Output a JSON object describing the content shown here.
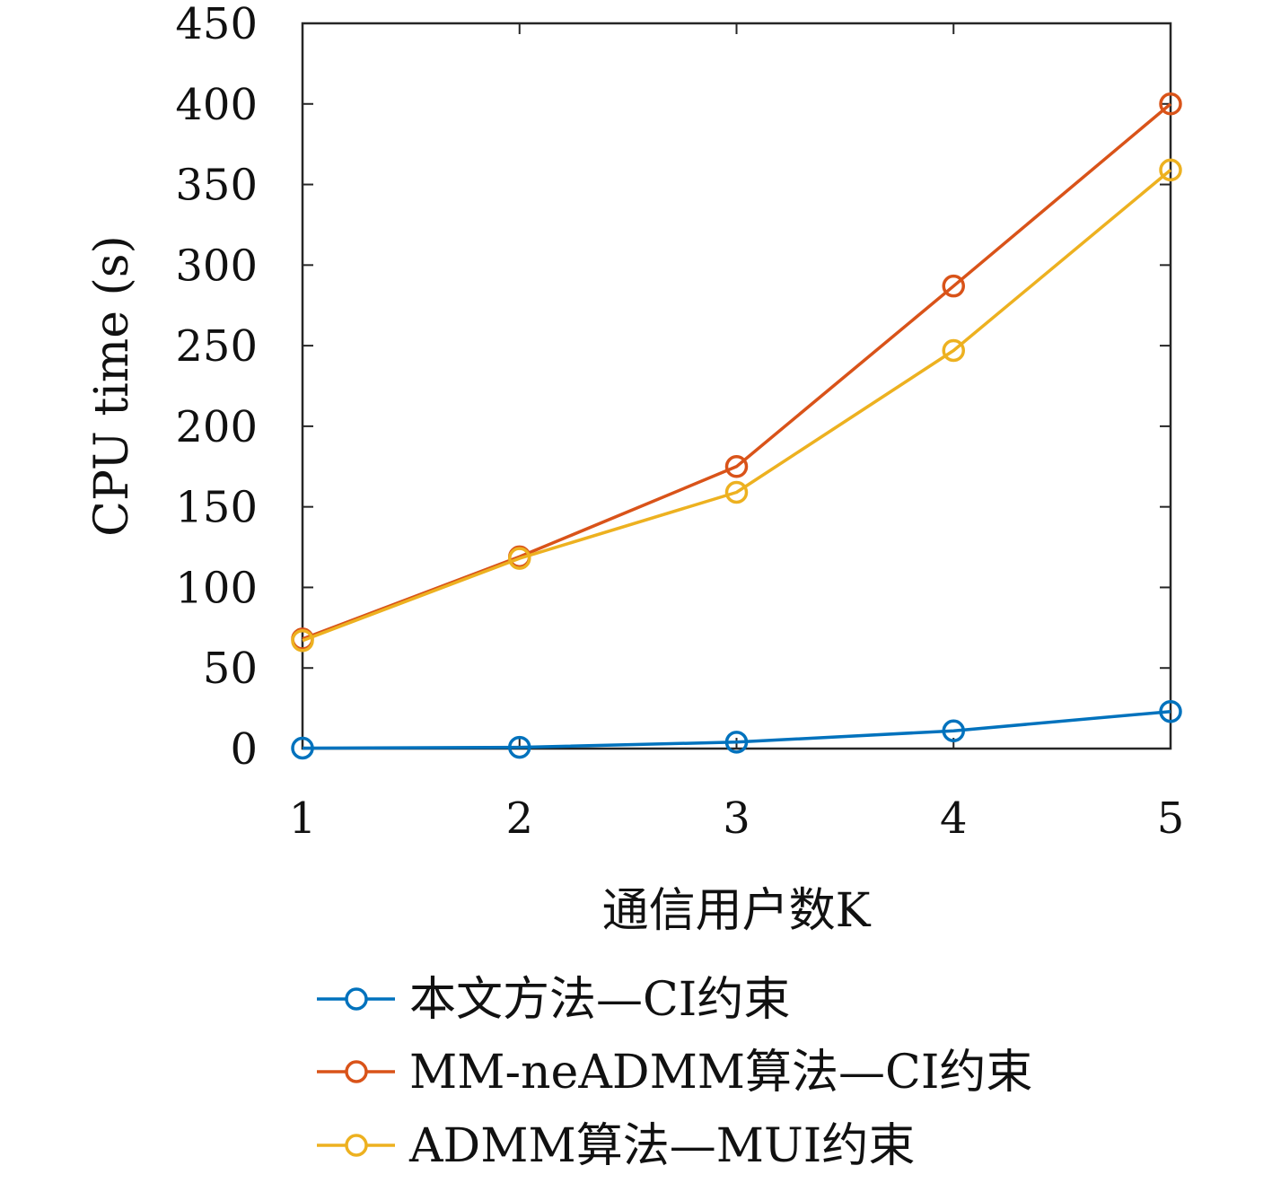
{
  "chart_data": {
    "type": "line",
    "x": [
      1,
      2,
      3,
      4,
      5
    ],
    "xlabel": "通信用户数K",
    "ylabel": "CPU time (s)",
    "xlim": [
      1,
      5
    ],
    "ylim": [
      0,
      450
    ],
    "xticks": [
      "1",
      "2",
      "3",
      "4",
      "5"
    ],
    "yticks": [
      "0",
      "50",
      "100",
      "150",
      "200",
      "250",
      "300",
      "350",
      "400",
      "450"
    ],
    "grid": false,
    "legend_position": "bottom",
    "series": [
      {
        "name": "本文方法—CI约束",
        "color": "#0072BD",
        "values": [
          0.3,
          0.8,
          4,
          11,
          23
        ]
      },
      {
        "name": "MM-neADMM算法—CI约束",
        "color": "#D95319",
        "values": [
          68,
          119,
          175,
          287,
          400
        ]
      },
      {
        "name": "ADMM算法—MUI约束",
        "color": "#EDB120",
        "values": [
          67,
          118,
          159,
          247,
          359
        ]
      }
    ]
  }
}
